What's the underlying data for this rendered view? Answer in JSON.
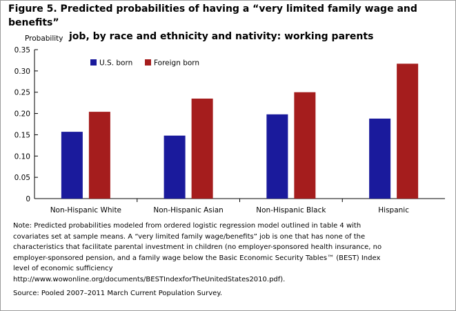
{
  "title_line1": "Figure 5. Predicted probabilities of having a “very limited family wage and benefits”",
  "title_line2": "job, by race and ethnicity and nativity: working parents",
  "note_lines": [
    "Note: Predicted probabilities  modeled from ordered logistic regression model outlined in table 4 with",
    "covariates set at sample means. A “very limited family wage/benefits”  job is one that  has none of the",
    "characteristics that facilitate parental investment in children  (no employer-sponsored  health insurance,  no",
    "employer-sponsored  pension, and a family wage below the Basic Economic Security Tables™ (BEST) Index",
    "level of economic sufficiency",
    "http://www.wowonline.org/documents/BESTIndexforTheUnitedStates2010.pdf)."
  ],
  "source": "Source:  Pooled 2007–2011 March Current Population  Survey.",
  "colors": {
    "us_born": "#1a1a9c",
    "foreign_born": "#a51d1d",
    "axis": "#000000"
  },
  "chart_data": {
    "type": "bar",
    "ylabel": "Probability",
    "ylim": [
      0,
      0.35
    ],
    "yticks": [
      "0.35",
      "0.30",
      "0.25",
      "0.20",
      "0.15",
      "0.10",
      "0.05",
      "0"
    ],
    "ytick_values": [
      0.35,
      0.3,
      0.25,
      0.2,
      0.15,
      0.1,
      0.05,
      0
    ],
    "categories": [
      "Non-Hispanic White",
      "Non-Hispanic Asian",
      "Non-Hispanic Black",
      "Hispanic"
    ],
    "series": [
      {
        "name": "U.S. born",
        "values": [
          0.157,
          0.148,
          0.198,
          0.188
        ]
      },
      {
        "name": "Foreign born",
        "values": [
          0.204,
          0.235,
          0.25,
          0.317
        ]
      }
    ],
    "legend_position": "top-left",
    "grid": false
  }
}
